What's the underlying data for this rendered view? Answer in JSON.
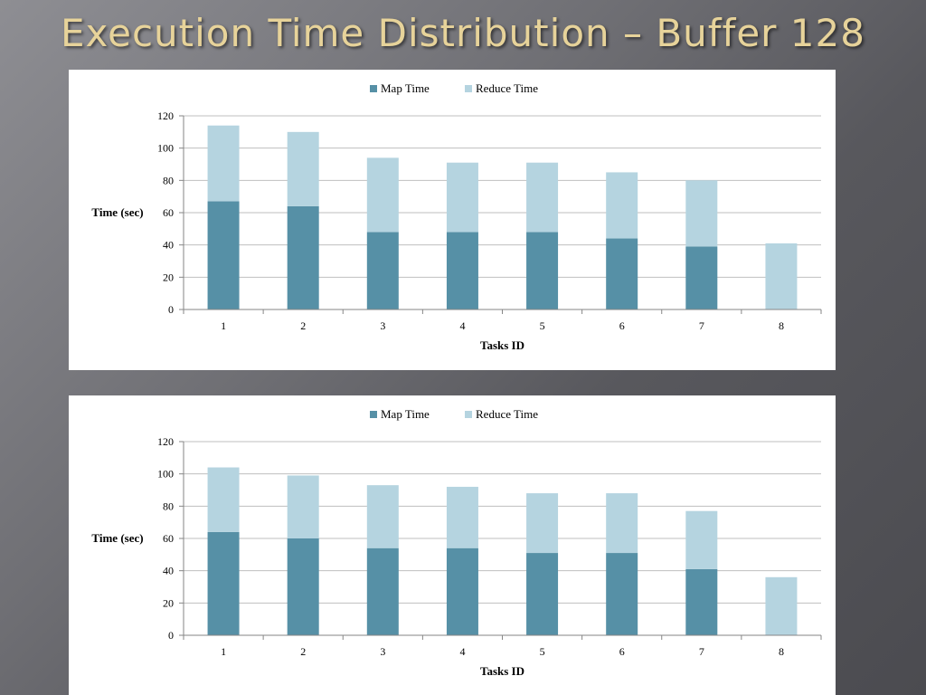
{
  "slide": {
    "title": "Execution Time Distribution – Buffer 128"
  },
  "colors": {
    "map": "#5690a6",
    "reduce": "#b5d4e0",
    "grid": "#bfbfbf",
    "axis": "#868686"
  },
  "chart_data": [
    {
      "type": "bar",
      "stacked": true,
      "categories": [
        "1",
        "2",
        "3",
        "4",
        "5",
        "6",
        "7",
        "8"
      ],
      "series": [
        {
          "name": "Map Time",
          "values": [
            67,
            64,
            48,
            48,
            48,
            44,
            39,
            0
          ]
        },
        {
          "name": "Reduce Time",
          "values": [
            47,
            46,
            46,
            43,
            43,
            41,
            41,
            41
          ]
        }
      ],
      "xlabel": "Tasks ID",
      "ylabel": "Time (sec)",
      "ylim": [
        0,
        120
      ],
      "yticks": [
        "0",
        "20",
        "40",
        "60",
        "80",
        "100",
        "120"
      ],
      "grid": true,
      "legend": "top"
    },
    {
      "type": "bar",
      "stacked": true,
      "categories": [
        "1",
        "2",
        "3",
        "4",
        "5",
        "6",
        "7",
        "8"
      ],
      "series": [
        {
          "name": "Map Time",
          "values": [
            64,
            60,
            54,
            54,
            51,
            51,
            41,
            0
          ]
        },
        {
          "name": "Reduce Time",
          "values": [
            40,
            39,
            39,
            38,
            37,
            37,
            36,
            36
          ]
        }
      ],
      "xlabel": "Tasks ID",
      "ylabel": "Time (sec)",
      "ylim": [
        0,
        120
      ],
      "yticks": [
        "0",
        "20",
        "40",
        "60",
        "80",
        "100",
        "120"
      ],
      "grid": true,
      "legend": "top"
    }
  ]
}
